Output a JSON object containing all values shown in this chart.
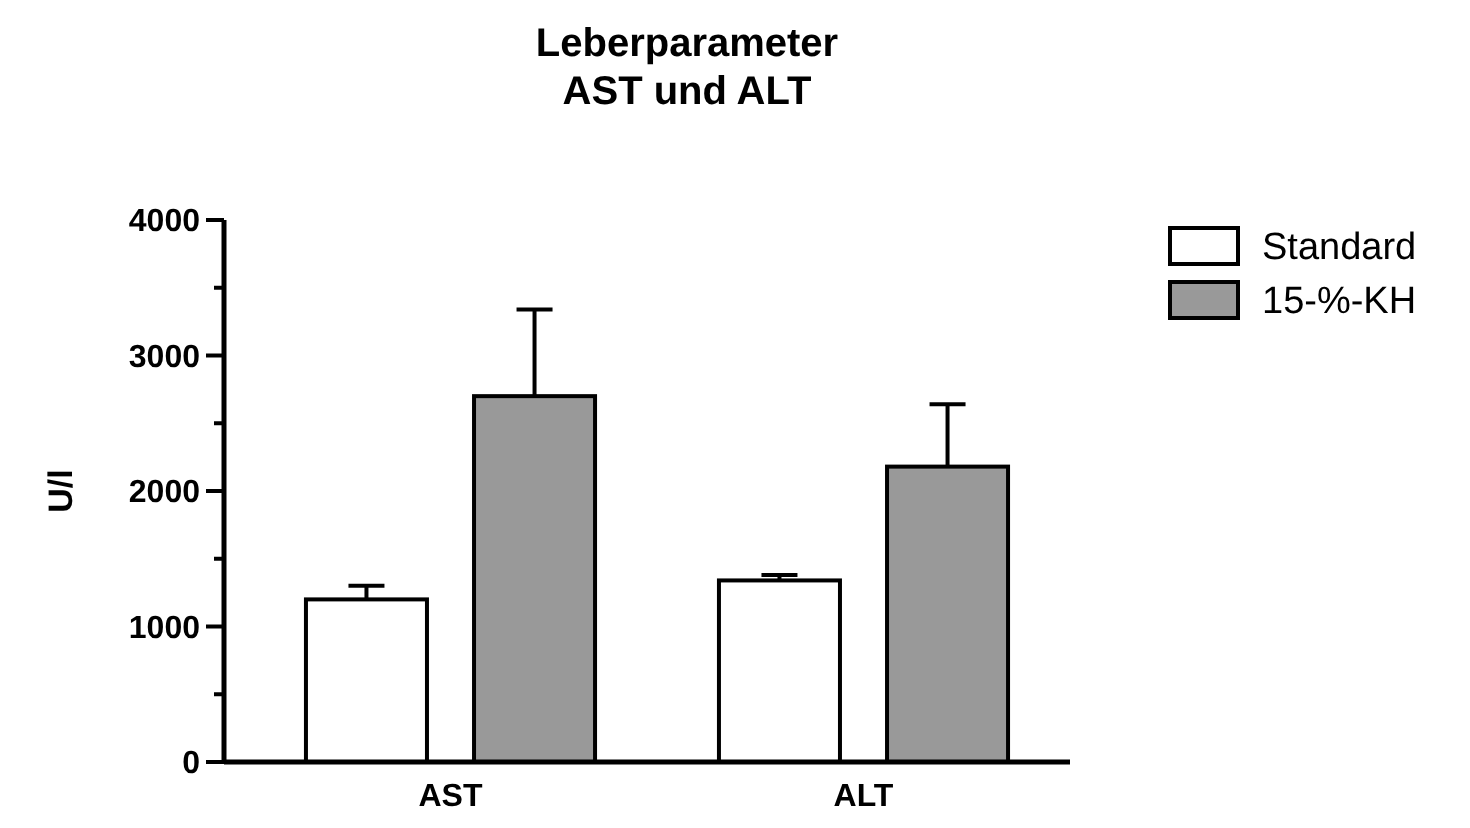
{
  "chart_data": {
    "type": "bar",
    "title": "Leberparameter\nAST und ALT",
    "ylabel": "U/l",
    "categories": [
      "AST",
      "ALT"
    ],
    "series": [
      {
        "name": "Standard",
        "color": "#ffffff",
        "values": [
          1200,
          1340
        ],
        "errors": [
          [
            1200,
            1300
          ],
          [
            1340,
            1380
          ]
        ]
      },
      {
        "name": "15-%-KH",
        "color": "#999999",
        "values": [
          2700,
          2180
        ],
        "errors": [
          [
            2700,
            3340
          ],
          [
            2180,
            2640
          ]
        ]
      }
    ],
    "ylim": [
      0,
      4000
    ],
    "yticks": [
      0,
      {
        "value": 500,
        "label": null
      },
      1000,
      {
        "value": 1500,
        "label": null
      },
      2000,
      {
        "value": 2500,
        "label": null
      },
      3000,
      {
        "value": 3500,
        "label": null
      },
      4000
    ],
    "grid": false,
    "legend": "top right"
  }
}
